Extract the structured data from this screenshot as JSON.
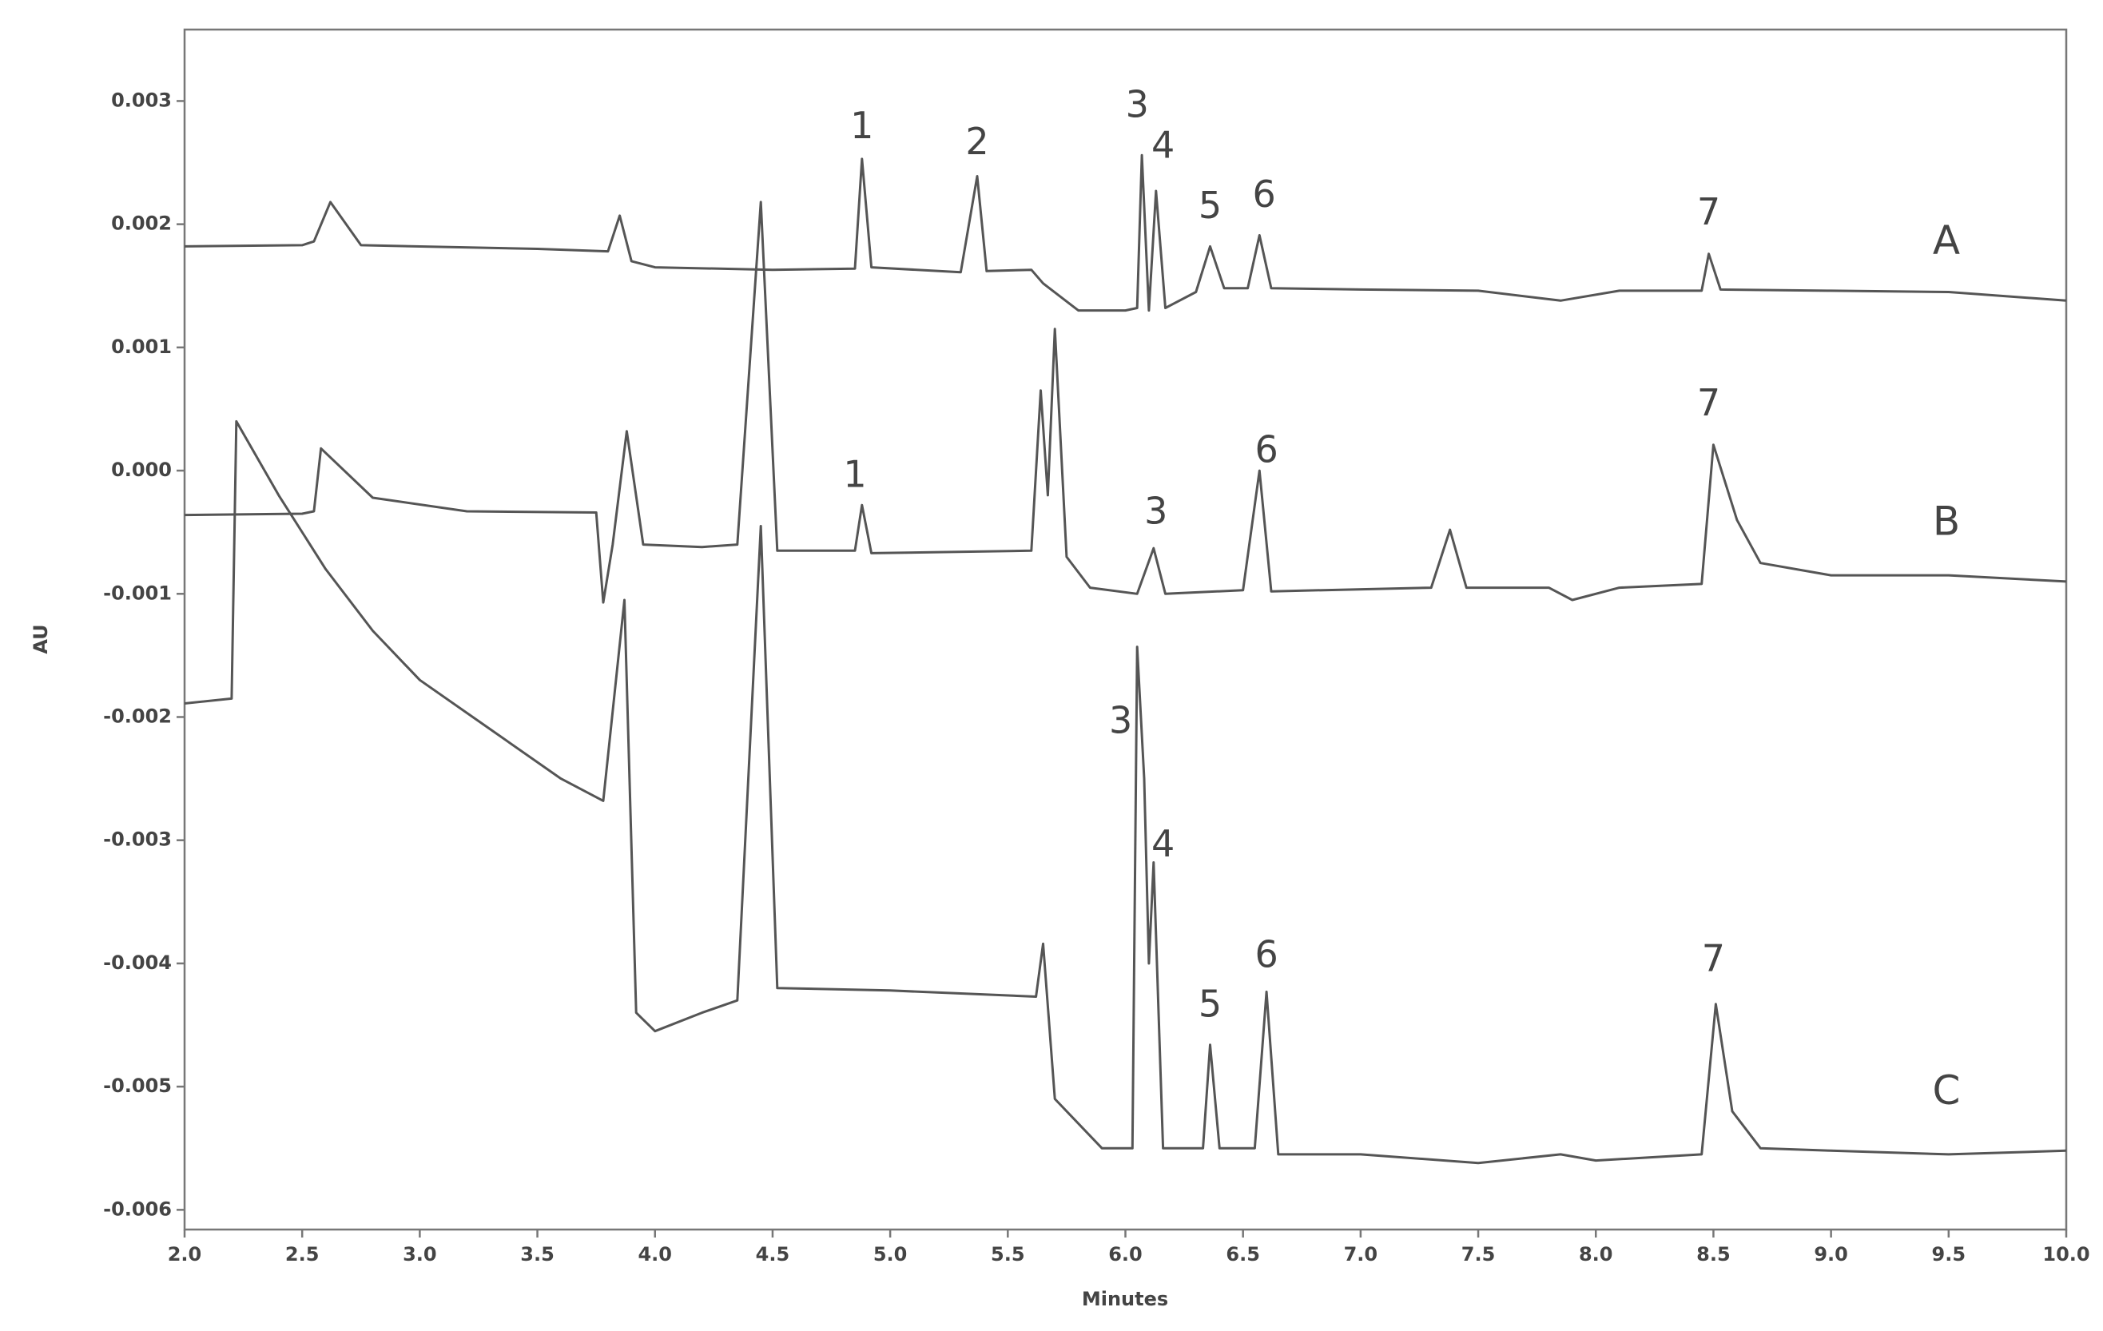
{
  "chart_data": {
    "type": "line",
    "xlabel": "Minutes",
    "ylabel": "AU",
    "xlim": [
      2.0,
      10.0
    ],
    "ylim": [
      -0.00616,
      0.00358
    ],
    "xticks": [
      {
        "value": 2,
        "label": "2.0"
      },
      {
        "value": 2.5,
        "label": "2.5"
      },
      {
        "value": 3,
        "label": "3.0"
      },
      {
        "value": 3.5,
        "label": "3.5"
      },
      {
        "value": 4,
        "label": "4.0"
      },
      {
        "value": 4.5,
        "label": "4.5"
      },
      {
        "value": 5,
        "label": "5.0"
      },
      {
        "value": 5.5,
        "label": "5.5"
      },
      {
        "value": 6,
        "label": "6.0"
      },
      {
        "value": 6.5,
        "label": "6.5"
      },
      {
        "value": 7,
        "label": "7.0"
      },
      {
        "value": 7.5,
        "label": "7.5"
      },
      {
        "value": 8,
        "label": "8.0"
      },
      {
        "value": 8.5,
        "label": "8.5"
      },
      {
        "value": 9,
        "label": "9.0"
      },
      {
        "value": 9.5,
        "label": "9.5"
      },
      {
        "value": 10,
        "label": "10.0"
      }
    ],
    "yticks": [
      0.003,
      0.002,
      0.001,
      {
        "value": 0,
        "label": "0.000"
      },
      -0.001,
      -0.002,
      -0.003,
      -0.004,
      -0.005,
      -0.006
    ],
    "series": [
      {
        "name": "A",
        "color": "#555555",
        "x": [
          2.0,
          2.5,
          2.55,
          2.62,
          2.75,
          3.5,
          3.8,
          3.85,
          3.9,
          4.0,
          4.5,
          4.85,
          4.88,
          4.92,
          5.3,
          5.37,
          5.41,
          5.6,
          5.65,
          5.8,
          6.0,
          6.05,
          6.07,
          6.1,
          6.13,
          6.17,
          6.3,
          6.36,
          6.42,
          6.52,
          6.57,
          6.62,
          7.0,
          7.5,
          7.85,
          8.1,
          8.45,
          8.48,
          8.53,
          9.0,
          9.5,
          10.0
        ],
        "values": [
          0.00182,
          0.00183,
          0.00186,
          0.00218,
          0.00183,
          0.0018,
          0.00178,
          0.00207,
          0.0017,
          0.00165,
          0.00163,
          0.00164,
          0.00253,
          0.00165,
          0.00161,
          0.00239,
          0.00162,
          0.00163,
          0.00152,
          0.0013,
          0.0013,
          0.00132,
          0.00256,
          0.0013,
          0.00227,
          0.00132,
          0.00145,
          0.00182,
          0.00148,
          0.00148,
          0.00191,
          0.00148,
          0.00147,
          0.00146,
          0.00138,
          0.00146,
          0.00146,
          0.00176,
          0.00147,
          0.00146,
          0.00145,
          0.00138
        ]
      },
      {
        "name": "B",
        "color": "#555555",
        "x": [
          2.0,
          2.5,
          2.55,
          2.58,
          2.8,
          3.2,
          3.75,
          3.78,
          3.82,
          3.88,
          3.95,
          4.2,
          4.35,
          4.45,
          4.52,
          4.85,
          4.88,
          4.92,
          5.6,
          5.64,
          5.67,
          5.7,
          5.75,
          5.85,
          6.05,
          6.12,
          6.17,
          6.5,
          6.57,
          6.62,
          7.3,
          7.38,
          7.45,
          7.8,
          7.9,
          8.1,
          8.45,
          8.5,
          8.6,
          8.7,
          9.0,
          9.5,
          10.0
        ],
        "values": [
          -0.00036,
          -0.00035,
          -0.00033,
          0.00018,
          -0.00022,
          -0.00033,
          -0.00034,
          -0.00107,
          -0.0006,
          0.00032,
          -0.0006,
          -0.00062,
          -0.0006,
          0.00218,
          -0.00065,
          -0.00065,
          -0.00028,
          -0.00067,
          -0.00065,
          0.00065,
          -0.0002,
          0.00115,
          -0.0007,
          -0.00095,
          -0.001,
          -0.00063,
          -0.001,
          -0.00097,
          0.0,
          -0.00098,
          -0.00095,
          -0.00048,
          -0.00095,
          -0.00095,
          -0.00105,
          -0.00095,
          -0.00092,
          0.00021,
          -0.0004,
          -0.00075,
          -0.00085,
          -0.00085,
          -0.0009
        ]
      },
      {
        "name": "C",
        "color": "#555555",
        "x": [
          2.0,
          2.2,
          2.22,
          2.4,
          2.6,
          2.8,
          3.0,
          3.3,
          3.6,
          3.78,
          3.87,
          3.92,
          4.0,
          4.2,
          4.35,
          4.45,
          4.52,
          5.0,
          5.62,
          5.65,
          5.7,
          5.9,
          6.03,
          6.05,
          6.08,
          6.1,
          6.12,
          6.16,
          6.33,
          6.36,
          6.4,
          6.55,
          6.6,
          6.65,
          7.0,
          7.5,
          7.85,
          8.0,
          8.45,
          8.51,
          8.58,
          8.7,
          9.0,
          9.5,
          10.0
        ],
        "values": [
          -0.00189,
          -0.00185,
          0.0004,
          -0.0002,
          -0.0008,
          -0.0013,
          -0.0017,
          -0.0021,
          -0.0025,
          -0.00268,
          -0.00105,
          -0.0044,
          -0.00455,
          -0.0044,
          -0.0043,
          -0.00045,
          -0.0042,
          -0.00422,
          -0.00427,
          -0.00384,
          -0.0051,
          -0.0055,
          -0.0055,
          -0.00143,
          -0.0025,
          -0.004,
          -0.00318,
          -0.0055,
          -0.0055,
          -0.00466,
          -0.0055,
          -0.0055,
          -0.00423,
          -0.00555,
          -0.00555,
          -0.00562,
          -0.00555,
          -0.0056,
          -0.00555,
          -0.00433,
          -0.0052,
          -0.0055,
          -0.00552,
          -0.00555,
          -0.00552
        ]
      }
    ],
    "annotations": [
      {
        "text": "1",
        "x": 4.88,
        "y": 0.00278
      },
      {
        "text": "2",
        "x": 5.37,
        "y": 0.00265
      },
      {
        "text": "3",
        "x": 6.05,
        "y": 0.00295
      },
      {
        "text": "4",
        "x": 6.16,
        "y": 0.00262
      },
      {
        "text": "5",
        "x": 6.36,
        "y": 0.00213
      },
      {
        "text": "6",
        "x": 6.59,
        "y": 0.00222
      },
      {
        "text": "7",
        "x": 8.48,
        "y": 0.00208
      },
      {
        "text": "1",
        "x": 4.85,
        "y": -5e-05
      },
      {
        "text": "3",
        "x": 6.13,
        "y": -0.00035
      },
      {
        "text": "6",
        "x": 6.6,
        "y": 0.00015
      },
      {
        "text": "7",
        "x": 8.48,
        "y": 0.00053
      },
      {
        "text": "3",
        "x": 5.98,
        "y": -0.00205
      },
      {
        "text": "4",
        "x": 6.16,
        "y": -0.00305
      },
      {
        "text": "5",
        "x": 6.36,
        "y": -0.00435
      },
      {
        "text": "6",
        "x": 6.6,
        "y": -0.00395
      },
      {
        "text": "7",
        "x": 8.5,
        "y": -0.00398
      }
    ]
  }
}
